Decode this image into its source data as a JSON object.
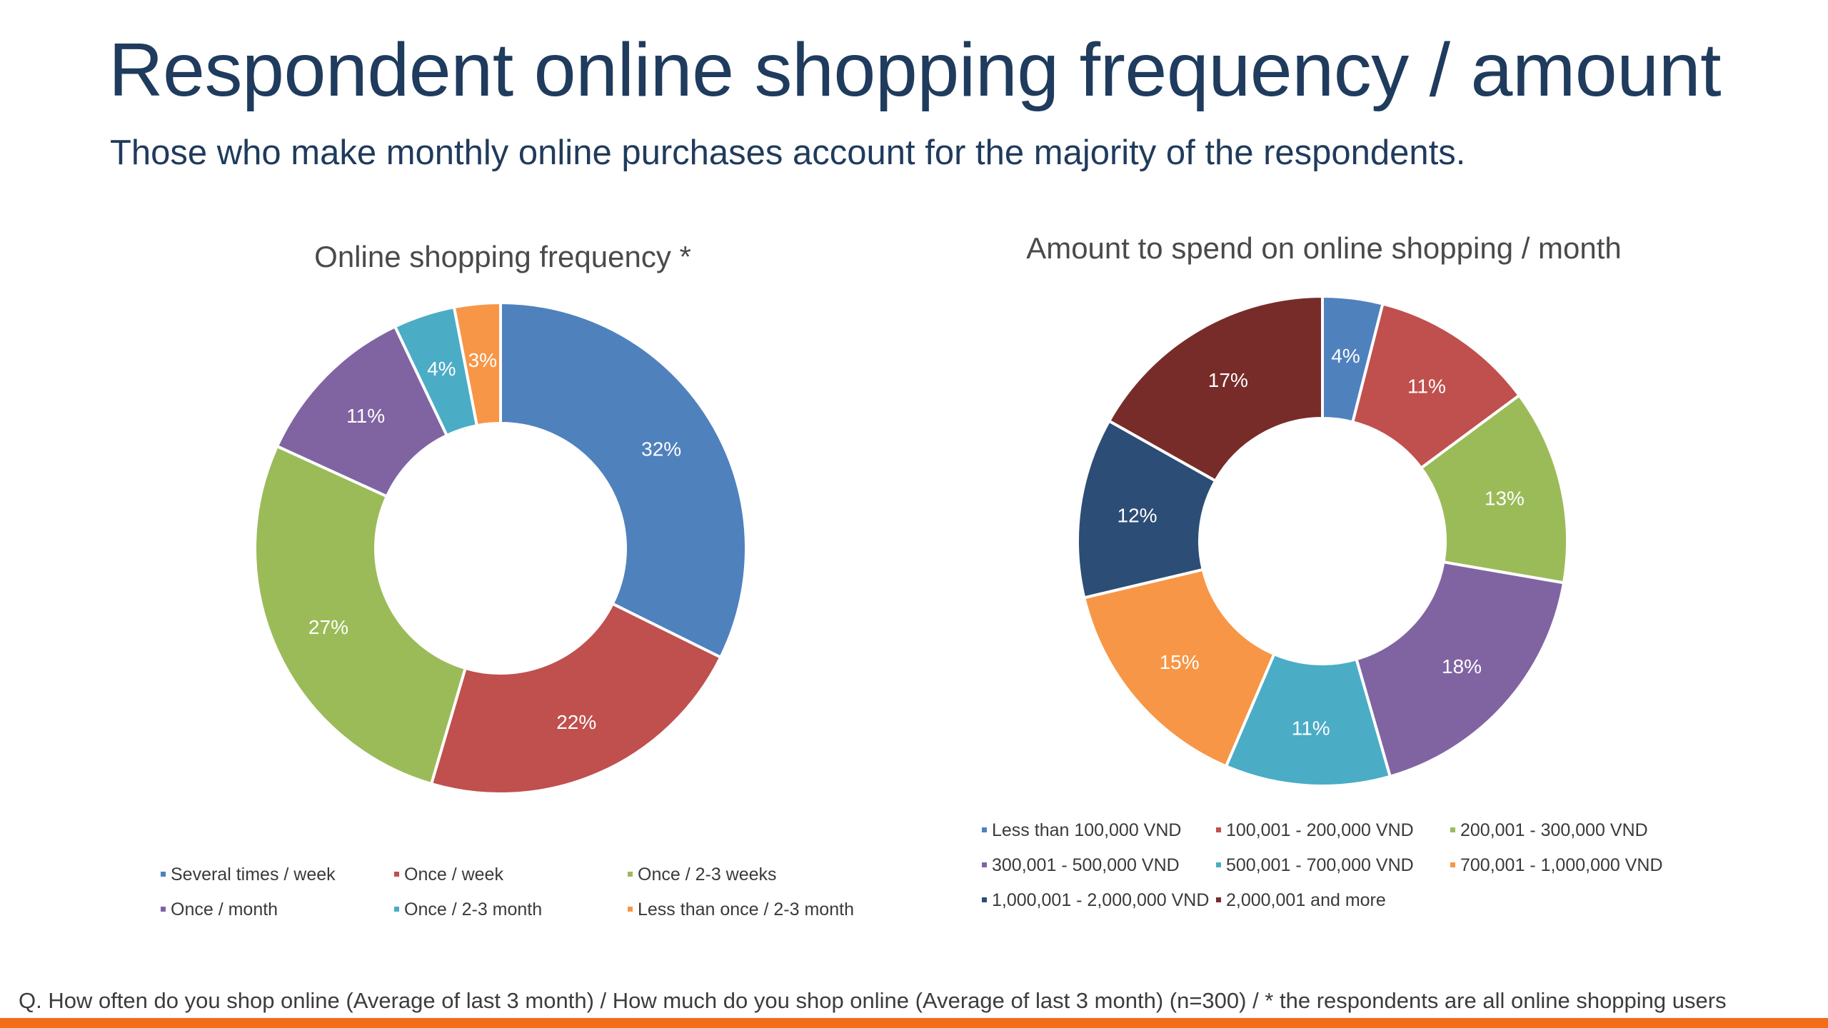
{
  "slide": {
    "title": "Respondent online shopping frequency / amount",
    "subtitle": "Those who make monthly online purchases account for the majority of the respondents.",
    "footnote": "Q. How often do you shop online (Average of last 3 month) / How much do you shop online (Average of last 3 month) (n=300) / * the respondents are all online shopping users",
    "accent_color": "#f36c1a"
  },
  "chart_data": [
    {
      "type": "pie",
      "variant": "donut",
      "title": "Online shopping frequency *",
      "legend_position": "bottom",
      "start_angle_deg": 0,
      "categories": [
        "Several times / week",
        "Once / week",
        "Once / 2-3 weeks",
        "Once / month",
        "Once / 2-3 month",
        "Less than once / 2-3 month"
      ],
      "values": [
        32,
        22,
        27,
        11,
        4,
        3
      ],
      "labels": [
        "32%",
        "22%",
        "27%",
        "11%",
        "4%",
        "3%"
      ],
      "colors": [
        "#4f81bd",
        "#c0504d",
        "#9bbb59",
        "#8064a2",
        "#4bacc6",
        "#f79646"
      ]
    },
    {
      "type": "pie",
      "variant": "donut",
      "title": "Amount to spend on online shopping / month",
      "legend_position": "bottom",
      "start_angle_deg": 0,
      "categories": [
        "Less than 100,000 VND",
        "100,001 - 200,000 VND",
        "200,001 - 300,000 VND",
        "300,001 - 500,000 VND",
        "500,001 - 700,000 VND",
        "700,001 - 1,000,000 VND",
        "1,000,001 - 2,000,000 VND",
        "2,000,001 and more"
      ],
      "values": [
        4,
        11,
        13,
        18,
        11,
        15,
        12,
        17
      ],
      "labels": [
        "4%",
        "11%",
        "13%",
        "18%",
        "11%",
        "15%",
        "12%",
        "17%"
      ],
      "colors": [
        "#4f81bd",
        "#c0504d",
        "#9bbb59",
        "#8064a2",
        "#4bacc6",
        "#f79646",
        "#2c4d75",
        "#772c2a"
      ]
    }
  ]
}
